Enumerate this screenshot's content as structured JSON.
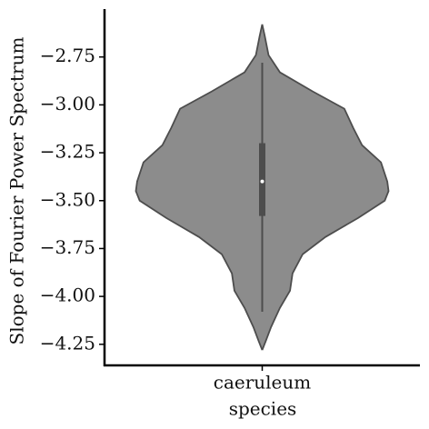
{
  "chart_data": {
    "type": "violin",
    "xlabel": "species",
    "ylabel": "Slope of Fourier Power Spectrum",
    "categories": [
      "caeruleum"
    ],
    "color": "#8c8c8c",
    "edgecolor": "#4d4d4d",
    "ylim": [
      -4.36,
      -2.5
    ],
    "yticks": [
      {
        "value": -2.75,
        "label": "−2.75"
      },
      {
        "value": -3.0,
        "label": "−3.00"
      },
      {
        "value": -3.25,
        "label": "−3.25"
      },
      {
        "value": -3.5,
        "label": "−3.50"
      },
      {
        "value": -3.75,
        "label": "−3.75"
      },
      {
        "value": -4.0,
        "label": "−4.00"
      },
      {
        "value": -4.25,
        "label": "−4.25"
      }
    ],
    "violin": {
      "y": [
        -2.58,
        -2.64,
        -2.74,
        -2.83,
        -2.93,
        -3.02,
        -3.12,
        -3.21,
        -3.3,
        -3.4,
        -3.45,
        -3.5,
        -3.59,
        -3.69,
        -3.78,
        -3.88,
        -3.97,
        -4.06,
        -4.16,
        -4.23,
        -4.28
      ],
      "density": [
        0,
        0.02,
        0.05,
        0.14,
        0.4,
        0.65,
        0.72,
        0.79,
        0.94,
        0.99,
        1.0,
        0.97,
        0.76,
        0.5,
        0.32,
        0.24,
        0.22,
        0.14,
        0.07,
        0.03,
        0
      ]
    },
    "box": {
      "whisker_low": -4.08,
      "q1": -3.58,
      "median": -3.4,
      "q3": -3.2,
      "whisker_high": -2.78
    }
  }
}
